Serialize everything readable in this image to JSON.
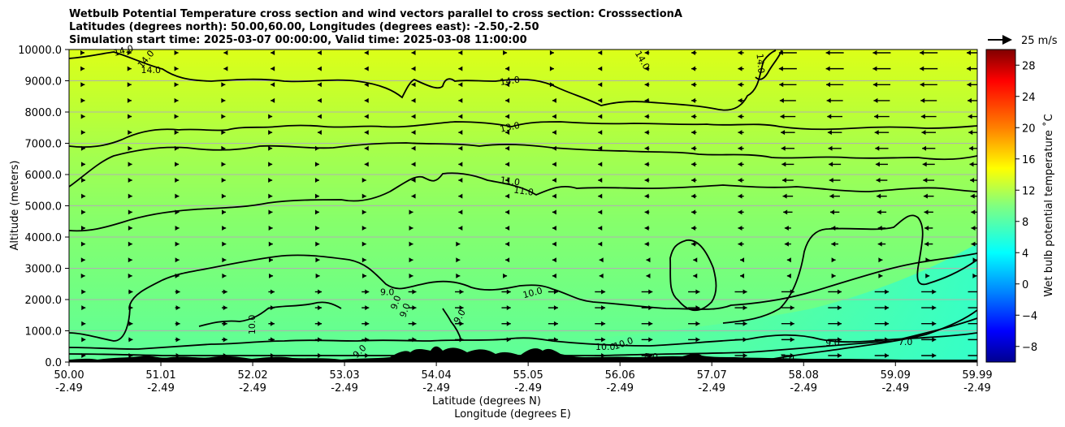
{
  "chart_data": {
    "type": "heatmap",
    "title_lines": [
      "Wetbulb Potential Temperature cross section and wind vectors parallel to cross section: CrosssectionA",
      "Latitudes (degrees north): 50.00,60.00, Longitudes (degrees east): -2.50,-2.50",
      "Simulation start time: 2025-03-07 00:00:00, Valid time: 2025-03-08 11:00:00"
    ],
    "xlabel": "Latitude (degrees N)",
    "xlabel2": "Longitude (degrees E)",
    "ylabel": "Altitude (meters)",
    "colorbar_label": "Wet bulb potential temperature $^\\circ$C",
    "colorbar_label_display": "Wet bulb potential temperature ˚C",
    "x_ticks": [
      {
        "lat": "50.00",
        "lon": "-2.49"
      },
      {
        "lat": "51.01",
        "lon": "-2.49"
      },
      {
        "lat": "52.02",
        "lon": "-2.49"
      },
      {
        "lat": "53.03",
        "lon": "-2.49"
      },
      {
        "lat": "54.04",
        "lon": "-2.49"
      },
      {
        "lat": "55.05",
        "lon": "-2.49"
      },
      {
        "lat": "56.06",
        "lon": "-2.49"
      },
      {
        "lat": "57.07",
        "lon": "-2.49"
      },
      {
        "lat": "58.08",
        "lon": "-2.49"
      },
      {
        "lat": "59.09",
        "lon": "-2.49"
      },
      {
        "lat": "59.99",
        "lon": "-2.49"
      }
    ],
    "xlim": [
      50.0,
      59.99
    ],
    "y_ticks": [
      "0.0",
      "1000.0",
      "2000.0",
      "3000.0",
      "4000.0",
      "5000.0",
      "6000.0",
      "7000.0",
      "8000.0",
      "9000.0",
      "10000.0"
    ],
    "ylim": [
      0,
      10000
    ],
    "colorbar_ticks": [
      "−8",
      "−4",
      "0",
      "4",
      "8",
      "12",
      "16",
      "20",
      "24",
      "28"
    ],
    "colorbar_range": [
      -10,
      30
    ],
    "colormap": "jet",
    "quiver_key_label": "25 m/s",
    "grid": true,
    "contour_labels": [
      {
        "text": "14.0",
        "lat": 50.6,
        "alt": 9950,
        "angle": -15
      },
      {
        "text": "14.0",
        "lat": 50.85,
        "alt": 9680,
        "angle": -50
      },
      {
        "text": "14.0",
        "lat": 50.9,
        "alt": 9330,
        "angle": 0
      },
      {
        "text": "14.0",
        "lat": 54.85,
        "alt": 8980,
        "angle": -8
      },
      {
        "text": "14.0",
        "lat": 56.3,
        "alt": 9650,
        "angle": 60
      },
      {
        "text": "14.0",
        "lat": 57.6,
        "alt": 9550,
        "angle": 85
      },
      {
        "text": "13.0",
        "lat": 54.85,
        "alt": 7500,
        "angle": -12
      },
      {
        "text": "11.0",
        "lat": 54.85,
        "alt": 5770,
        "angle": 8
      },
      {
        "text": "11.0",
        "lat": 55.0,
        "alt": 5450,
        "angle": 8
      },
      {
        "text": "10.0",
        "lat": 55.1,
        "alt": 2200,
        "angle": -15
      },
      {
        "text": "10.0",
        "lat": 52.02,
        "alt": 1200,
        "angle": -90
      },
      {
        "text": "10.0",
        "lat": 56.1,
        "alt": 580,
        "angle": -20
      },
      {
        "text": "10.0",
        "lat": 55.9,
        "alt": 470,
        "angle": 0
      },
      {
        "text": "9.0",
        "lat": 53.5,
        "alt": 2220,
        "angle": 0
      },
      {
        "text": "9.0",
        "lat": 53.6,
        "alt": 1900,
        "angle": -70
      },
      {
        "text": "9.0",
        "lat": 53.7,
        "alt": 1650,
        "angle": -70
      },
      {
        "text": "9.0",
        "lat": 54.3,
        "alt": 1450,
        "angle": -60
      },
      {
        "text": "9.0",
        "lat": 53.2,
        "alt": 330,
        "angle": -45
      },
      {
        "text": "9.0",
        "lat": 58.4,
        "alt": 600,
        "angle": 0
      },
      {
        "text": "8.0",
        "lat": 56.4,
        "alt": 150,
        "angle": 0
      },
      {
        "text": "7.0",
        "lat": 59.2,
        "alt": 620,
        "angle": 0
      },
      {
        "text": "7.0",
        "lat": 57.9,
        "alt": 120,
        "angle": 0
      }
    ],
    "colors": {
      "contour": "#000000",
      "terrain": "#000000",
      "grid": "#b0b0b0"
    }
  }
}
